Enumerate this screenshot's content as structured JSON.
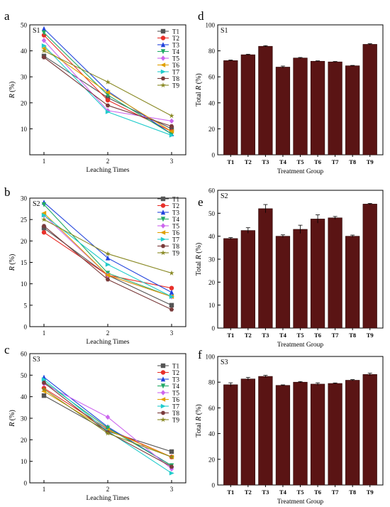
{
  "chart_data": [
    {
      "panel": "a",
      "tag": "S1",
      "type": "line",
      "x": [
        1,
        2,
        3
      ],
      "xlabel": "Leaching Times",
      "ylabel": "R (%)",
      "ylim": [
        0,
        50
      ],
      "yticks": [
        10,
        20,
        30,
        40,
        50
      ],
      "legend": "top-right",
      "series": [
        {
          "name": "T1",
          "color": "#555555",
          "marker": "square",
          "values": [
            38,
            22,
            10
          ]
        },
        {
          "name": "T2",
          "color": "#e8302a",
          "marker": "circle",
          "values": [
            46,
            21,
            9
          ]
        },
        {
          "name": "T3",
          "color": "#2244dd",
          "marker": "triangle",
          "values": [
            48.5,
            24.5,
            8
          ]
        },
        {
          "name": "T4",
          "color": "#22aa66",
          "marker": "tri-down",
          "values": [
            47,
            23,
            8
          ]
        },
        {
          "name": "T5",
          "color": "#cc66ee",
          "marker": "diamond",
          "values": [
            44,
            17,
            13
          ]
        },
        {
          "name": "T6",
          "color": "#e0a000",
          "marker": "tri-left",
          "values": [
            41,
            24,
            9
          ]
        },
        {
          "name": "T7",
          "color": "#22cccc",
          "marker": "tri-right",
          "values": [
            42,
            16.5,
            7.5
          ]
        },
        {
          "name": "T8",
          "color": "#7a3b3b",
          "marker": "hexagon",
          "values": [
            37.5,
            19,
            11
          ]
        },
        {
          "name": "T9",
          "color": "#888822",
          "marker": "star",
          "values": [
            40,
            28,
            15
          ]
        }
      ]
    },
    {
      "panel": "d",
      "tag": "S1",
      "type": "bar",
      "categories": [
        "T1",
        "T2",
        "T3",
        "T4",
        "T5",
        "T6",
        "T7",
        "T8",
        "T9"
      ],
      "values": [
        72.5,
        77,
        83.5,
        67.5,
        74.5,
        72,
        71.5,
        68.5,
        85
      ],
      "errors": [
        0.4,
        0.4,
        0.5,
        0.8,
        0.4,
        0.3,
        0.3,
        0.3,
        0.5
      ],
      "xlabel": "Treatment Group",
      "ylabel": "Total R (%)",
      "ylim": [
        0,
        100
      ],
      "yticks": [
        0,
        20,
        40,
        60,
        80,
        100
      ],
      "color": "#5a1414"
    },
    {
      "panel": "b",
      "tag": "S2",
      "type": "line",
      "x": [
        1,
        2,
        3
      ],
      "xlabel": "Leaching Times",
      "ylabel": "R (%)",
      "ylim": [
        0,
        30
      ],
      "yticks": [
        0,
        5,
        10,
        15,
        20,
        25,
        30
      ],
      "legend": "top-right",
      "series": [
        {
          "name": "T1",
          "color": "#555555",
          "marker": "square",
          "values": [
            23,
            12,
            5
          ]
        },
        {
          "name": "T2",
          "color": "#e8302a",
          "marker": "circle",
          "values": [
            22,
            12,
            9
          ]
        },
        {
          "name": "T3",
          "color": "#2244dd",
          "marker": "triangle",
          "values": [
            29,
            16,
            8
          ]
        },
        {
          "name": "T4",
          "color": "#22aa66",
          "marker": "tri-down",
          "values": [
            28.5,
            12.5,
            7
          ]
        },
        {
          "name": "T5",
          "color": "#cc66ee",
          "marker": "diamond",
          "values": [
            26,
            12,
            7
          ]
        },
        {
          "name": "T6",
          "color": "#e0a000",
          "marker": "tri-left",
          "values": [
            26.5,
            12,
            7
          ]
        },
        {
          "name": "T7",
          "color": "#22cccc",
          "marker": "tri-right",
          "values": [
            26,
            14.5,
            7
          ]
        },
        {
          "name": "T8",
          "color": "#7a3b3b",
          "marker": "hexagon",
          "values": [
            23.5,
            11,
            4
          ]
        },
        {
          "name": "T9",
          "color": "#888822",
          "marker": "star",
          "values": [
            25,
            17,
            12.5
          ]
        }
      ]
    },
    {
      "panel": "e",
      "tag": "S2",
      "type": "bar",
      "categories": [
        "T1",
        "T2",
        "T3",
        "T4",
        "T5",
        "T6",
        "T7",
        "T8",
        "T9"
      ],
      "values": [
        39,
        42.5,
        52,
        40,
        43,
        47.5,
        48,
        40,
        54
      ],
      "errors": [
        0.4,
        1.2,
        1.8,
        0.6,
        1.8,
        1.8,
        0.6,
        0.5,
        0.3
      ],
      "xlabel": "Treatment Group",
      "ylabel": "Total R (%)",
      "ylim": [
        0,
        60
      ],
      "yticks": [
        0,
        10,
        20,
        30,
        40,
        50,
        60
      ],
      "color": "#5a1414"
    },
    {
      "panel": "c",
      "tag": "S3",
      "type": "line",
      "x": [
        1,
        2,
        3
      ],
      "xlabel": "Leaching Times",
      "ylabel": "R (%)",
      "ylim": [
        0,
        60
      ],
      "yticks": [
        0,
        10,
        20,
        30,
        40,
        50,
        60
      ],
      "legend": "top-right",
      "series": [
        {
          "name": "T1",
          "color": "#555555",
          "marker": "square",
          "values": [
            40.5,
            24,
            14.5
          ]
        },
        {
          "name": "T2",
          "color": "#e8302a",
          "marker": "circle",
          "values": [
            44,
            25,
            12
          ]
        },
        {
          "name": "T3",
          "color": "#2244dd",
          "marker": "triangle",
          "values": [
            49,
            26,
            8
          ]
        },
        {
          "name": "T4",
          "color": "#22aa66",
          "marker": "tri-down",
          "values": [
            47,
            25.5,
            8
          ]
        },
        {
          "name": "T5",
          "color": "#cc66ee",
          "marker": "diamond",
          "values": [
            46,
            30.5,
            6.5
          ]
        },
        {
          "name": "T6",
          "color": "#e0a000",
          "marker": "tri-left",
          "values": [
            42.5,
            24.5,
            12
          ]
        },
        {
          "name": "T7",
          "color": "#22cccc",
          "marker": "tri-right",
          "values": [
            48,
            24,
            4.5
          ]
        },
        {
          "name": "T8",
          "color": "#7a3b3b",
          "marker": "hexagon",
          "values": [
            46.5,
            23.5,
            7.5
          ]
        },
        {
          "name": "T9",
          "color": "#888822",
          "marker": "star",
          "values": [
            43.5,
            23,
            12
          ]
        }
      ]
    },
    {
      "panel": "f",
      "tag": "S3",
      "type": "bar",
      "categories": [
        "T1",
        "T2",
        "T3",
        "T4",
        "T5",
        "T6",
        "T7",
        "T8",
        "T9"
      ],
      "values": [
        78,
        82.5,
        84.5,
        77.5,
        80,
        78.5,
        79,
        81.5,
        86
      ],
      "errors": [
        1.5,
        1.2,
        0.8,
        0.4,
        0.5,
        1.0,
        0.4,
        0.5,
        1.0
      ],
      "xlabel": "Treatment Group",
      "ylabel": "Total R (%)",
      "ylim": [
        0,
        100
      ],
      "yticks": [
        0,
        20,
        40,
        60,
        80,
        100
      ],
      "color": "#5a1414"
    }
  ]
}
